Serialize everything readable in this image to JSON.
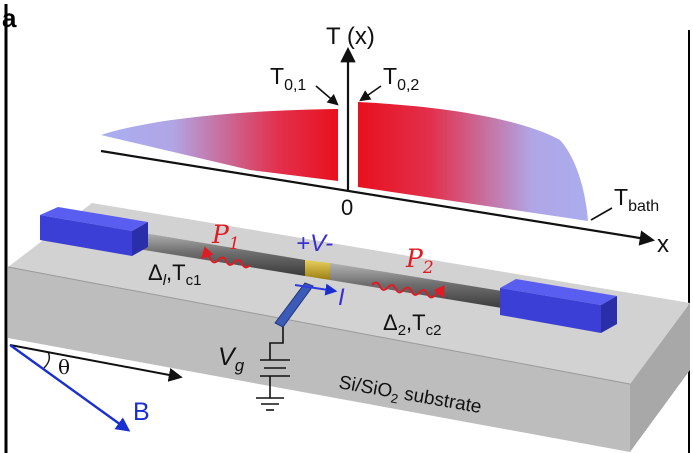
{
  "panel_label": "a",
  "axes": {
    "y_label": "T (x)",
    "x_label": "x",
    "origin_label": "0"
  },
  "temperature_labels": {
    "t01_main": "T",
    "t01_sub": "0,1",
    "t02_main": "T",
    "t02_sub": "0,2",
    "tbath_main": "T",
    "tbath_sub": "bath"
  },
  "device": {
    "p1_main": "P",
    "p1_sub": "1",
    "p2_main": "P",
    "p2_sub": "2",
    "voltage_label": "+V-",
    "current_label": "I",
    "left_gap_main": "Δ",
    "left_gap_sub": "l",
    "left_tc_main": ",T",
    "left_tc_sub": "c1",
    "right_gap_main": "Δ",
    "right_gap_sub": "2",
    "right_tc_main": ",T",
    "right_tc_sub": "c2",
    "gate_main": "V",
    "gate_sub": "g",
    "substrate_pre": "Si/SiO",
    "substrate_sub": "2",
    "substrate_post": " substrate",
    "angle_label": "θ",
    "field_label": "B"
  },
  "colors": {
    "hot": "#e8101e",
    "cold": "#a9aef0",
    "pad": "#3b3fd6",
    "junction": "#c9a81c",
    "red_text": "#e01b24",
    "blue_text": "#3a2fd0",
    "field_arrow": "#1a2fd0"
  }
}
